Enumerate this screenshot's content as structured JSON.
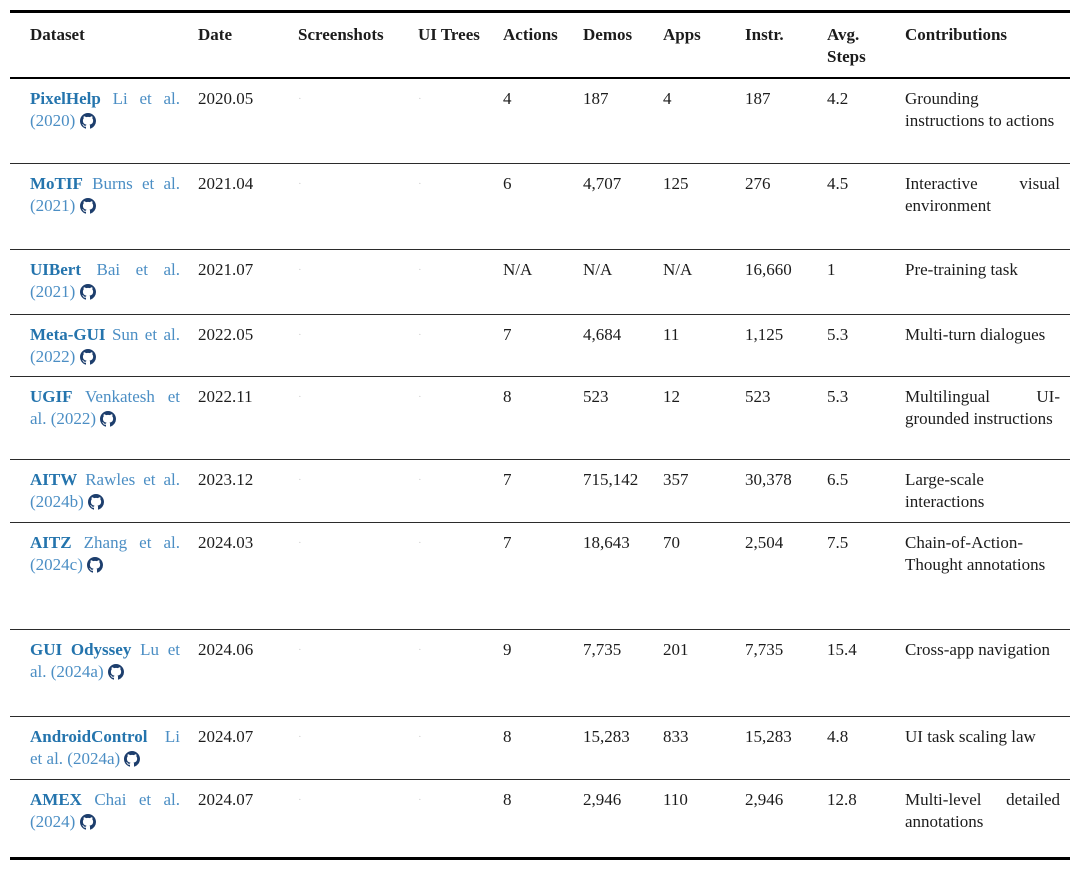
{
  "table": {
    "headers": {
      "dataset": "Dataset",
      "date": "Date",
      "screenshots": "Screenshots",
      "ui_trees": "UI Trees",
      "actions": "Actions",
      "demos": "Demos",
      "apps": "Apps",
      "instr": "Instr.",
      "avg_steps": "Avg. Steps",
      "contributions": "Contributions"
    },
    "rows": [
      {
        "name": "PixelHelp",
        "citation": "Li et al. (2020)",
        "github_icon": "github-icon",
        "date": "2020.05",
        "screenshots_mark": "·",
        "ui_trees_mark": "·",
        "actions": "4",
        "demos": "187",
        "apps": "4",
        "instr": "187",
        "avg_steps": "4.2",
        "contributions": "Grounding instructions to actions"
      },
      {
        "name": "MoTIF",
        "citation": "Burns et al. (2021)",
        "github_icon": "github-icon",
        "date": "2021.04",
        "screenshots_mark": "·",
        "ui_trees_mark": "·",
        "actions": "6",
        "demos": "4,707",
        "apps": "125",
        "instr": "276",
        "avg_steps": "4.5",
        "contributions": "Interactive visual environment"
      },
      {
        "name": "UIBert",
        "citation": "Bai et al. (2021)",
        "github_icon": "github-icon",
        "date": "2021.07",
        "screenshots_mark": "·",
        "ui_trees_mark": "·",
        "actions": "N/A",
        "demos": "N/A",
        "apps": "N/A",
        "instr": "16,660",
        "avg_steps": "1",
        "contributions": "Pre-training task"
      },
      {
        "name": "Meta-GUI",
        "citation": "Sun et al. (2022)",
        "github_icon": "github-icon",
        "date": "2022.05",
        "screenshots_mark": "·",
        "ui_trees_mark": "·",
        "actions": "7",
        "demos": "4,684",
        "apps": "11",
        "instr": "1,125",
        "avg_steps": "5.3",
        "contributions": "Multi-turn dialogues"
      },
      {
        "name": "UGIF",
        "citation": "Venkatesh et al. (2022)",
        "github_icon": "github-icon",
        "date": "2022.11",
        "screenshots_mark": "·",
        "ui_trees_mark": "·",
        "actions": "8",
        "demos": "523",
        "apps": "12",
        "instr": "523",
        "avg_steps": "5.3",
        "contributions": "Multilingual UI-grounded instructions"
      },
      {
        "name": "AITW",
        "citation": "Rawles et al. (2024b)",
        "github_icon": "github-icon",
        "date": "2023.12",
        "screenshots_mark": "·",
        "ui_trees_mark": "·",
        "actions": "7",
        "demos": "715,142",
        "apps": "357",
        "instr": "30,378",
        "avg_steps": "6.5",
        "contributions": "Large-scale interactions"
      },
      {
        "name": "AITZ",
        "citation": "Zhang et al. (2024c)",
        "github_icon": "github-icon",
        "date": "2024.03",
        "screenshots_mark": "·",
        "ui_trees_mark": "·",
        "actions": "7",
        "demos": "18,643",
        "apps": "70",
        "instr": "2,504",
        "avg_steps": "7.5",
        "contributions": "Chain-of-Action-Thought annotations"
      },
      {
        "name": "GUI Odyssey",
        "citation": "Lu et al. (2024a)",
        "github_icon": "github-icon",
        "date": "2024.06",
        "screenshots_mark": "·",
        "ui_trees_mark": "·",
        "actions": "9",
        "demos": "7,735",
        "apps": "201",
        "instr": "7,735",
        "avg_steps": "15.4",
        "contributions": "Cross-app navigation"
      },
      {
        "name": "AndroidControl",
        "citation": "Li et al. (2024a)",
        "github_icon": "github-icon",
        "date": "2024.07",
        "screenshots_mark": "·",
        "ui_trees_mark": "·",
        "actions": "8",
        "demos": "15,283",
        "apps": "833",
        "instr": "15,283",
        "avg_steps": "4.8",
        "contributions": "UI task scaling law"
      },
      {
        "name": "AMEX",
        "citation": "Chai et al. (2024)",
        "github_icon": "github-icon",
        "date": "2024.07",
        "screenshots_mark": "·",
        "ui_trees_mark": "·",
        "actions": "8",
        "demos": "2,946",
        "apps": "110",
        "instr": "2,946",
        "avg_steps": "12.8",
        "contributions": "Multi-level detailed annotations"
      }
    ],
    "colors": {
      "dataset_name": "#2474ad",
      "citation_link": "#4b8ec4",
      "github_icon": "#1d3e6d",
      "text": "#1c1c1c",
      "rule": "#000000"
    }
  }
}
